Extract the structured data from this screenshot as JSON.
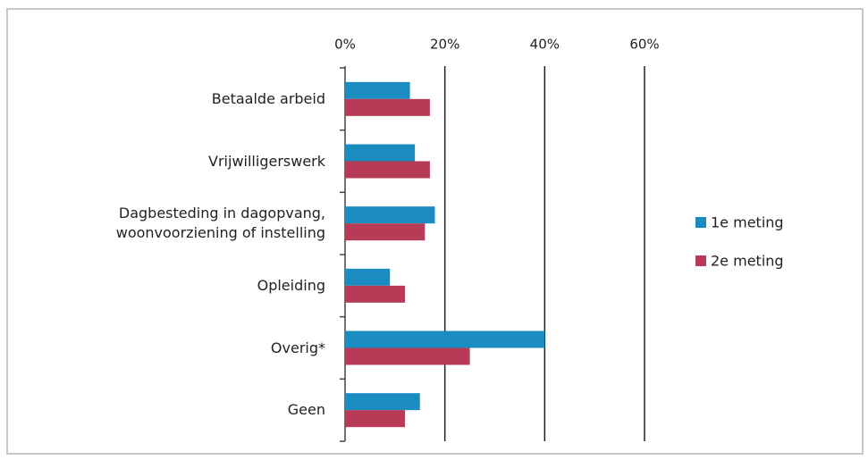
{
  "chart_data": {
    "type": "hbar",
    "categories": [
      "Betaalde arbeid",
      "Vrijwilligerswerk",
      "Dagbesteding in dagopvang, woonvoorziening of instelling",
      "Opleiding",
      "Overig*",
      "Geen"
    ],
    "series": [
      {
        "name": "1e meting",
        "color": "#1a8cc0",
        "values": [
          13,
          14,
          18,
          9,
          40,
          15
        ]
      },
      {
        "name": "2e meting",
        "color": "#b73a56",
        "values": [
          17,
          17,
          16,
          12,
          25,
          12
        ]
      }
    ],
    "xlim": [
      0,
      60
    ],
    "xticks": [
      {
        "value": 0,
        "label": "0%"
      },
      {
        "value": 20,
        "label": "20%"
      },
      {
        "value": 40,
        "label": "40%"
      },
      {
        "value": 60,
        "label": "60%"
      }
    ],
    "grid": true
  }
}
